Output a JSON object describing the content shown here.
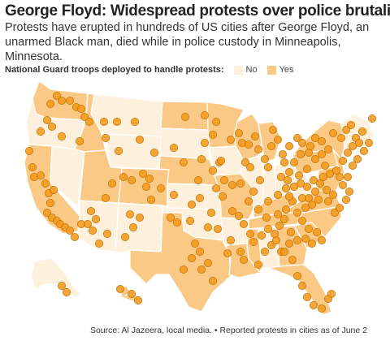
{
  "title": "George Floyd: Widespread protests over police brutality",
  "subtitle": "Protests have erupted in hundreds of US cities after George Floyd, an unarmed Black man, died while in police custody in Minneapolis, Minnesota.",
  "legend": {
    "label": "National Guard troops deployed to handle protests:",
    "no_label": "No",
    "yes_label": "Yes"
  },
  "colors": {
    "no": "#fdf1de",
    "yes": "#f9c985",
    "border": "#ffffff",
    "dot_fill": "#f29a1c",
    "dot_stroke": "#c77406"
  },
  "source": "Source: Al Jazeera, local media. • Reported protests in cities as of June 2"
}
